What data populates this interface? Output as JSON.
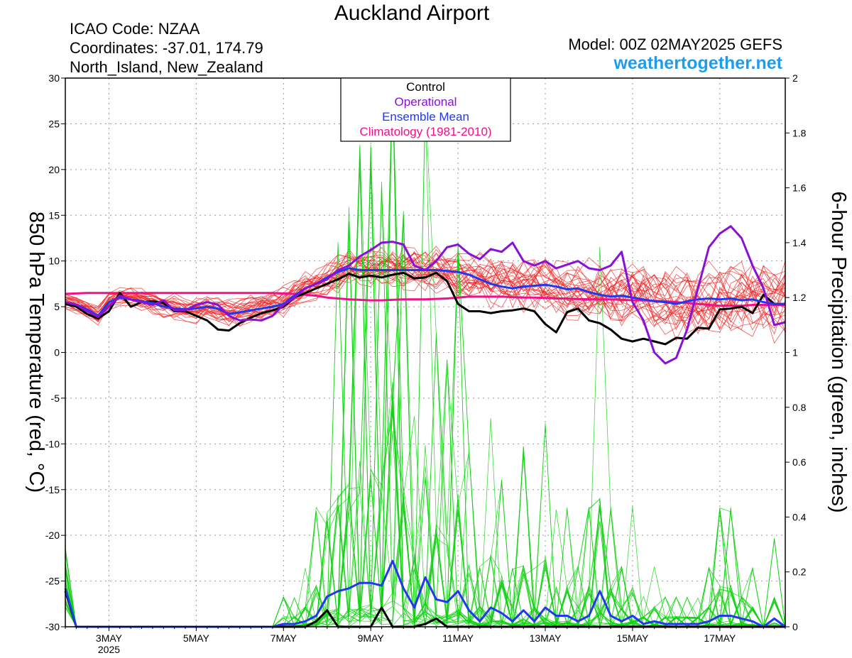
{
  "header": {
    "title": "Auckland Airport",
    "icao": "ICAO Code: NZAA",
    "coords": "Coordinates: -37.01, 174.79",
    "region": "North_Island, New_Zealand",
    "model": "Model: 00Z 02MAY2025 GEFS",
    "site": "weathertogether.net"
  },
  "colors": {
    "control": "#000000",
    "operational": "#8a10d8",
    "ensemble_mean": "#2038f0",
    "climatology": "#f0108a",
    "member_temp": "#f02020",
    "member_precip": "#10d010",
    "site": "#1e9cf0"
  },
  "chart_data": {
    "type": "line",
    "ylabel": "850 hPa Temperature (red, °C)",
    "y2label": "6-hour Precipitation (green, inches)",
    "ylim": [
      -30,
      30
    ],
    "y2lim": [
      0,
      2
    ],
    "yticks": [
      30,
      25,
      20,
      15,
      10,
      5,
      0,
      -5,
      -10,
      -15,
      -20,
      -25,
      -30
    ],
    "y2ticks": [
      2,
      1.8,
      1.6,
      1.4,
      1.2,
      1,
      0.8,
      0.6,
      0.4,
      0.2,
      0
    ],
    "x_start": "2025-05-02 00Z",
    "x_step_hours": 6,
    "x_ticks": [
      {
        "label": "3MAY",
        "sub": "2025",
        "day": 3
      },
      {
        "label": "5MAY",
        "day": 5
      },
      {
        "label": "7MAY",
        "day": 7
      },
      {
        "label": "9MAY",
        "day": 9
      },
      {
        "label": "11MAY",
        "day": 11
      },
      {
        "label": "13MAY",
        "day": 13
      },
      {
        "label": "15MAY",
        "day": 15
      },
      {
        "label": "17MAY",
        "day": 17
      }
    ],
    "legend": {
      "placement": "top-center",
      "entries": [
        "Control",
        "Operational",
        "Ensemble Mean",
        "Climatology (1981-2010)"
      ]
    },
    "grid": true,
    "series": [
      {
        "name": "Control",
        "axis": "temp",
        "values": [
          5.3,
          5.0,
          4.2,
          3.7,
          4.5,
          6.5,
          5.0,
          5.5,
          5.6,
          5.4,
          4.5,
          4.5,
          4.0,
          3.5,
          2.5,
          2.4,
          3.2,
          3.8,
          4.3,
          4.6,
          5.0,
          6.0,
          6.5,
          7.0,
          7.5,
          8.0,
          8.6,
          8.2,
          8.4,
          8.2,
          8.5,
          8.7,
          8.1,
          8.2,
          8.7,
          7.8,
          5.3,
          4.5,
          4.5,
          4.3,
          4.5,
          4.6,
          4.8,
          4.5,
          3.1,
          2.2,
          4.4,
          4.8,
          3.5,
          3.2,
          2.5,
          1.5,
          1.2,
          1.5,
          1.2,
          0.9,
          1.6,
          1.5,
          2.7,
          2.6,
          4.7,
          4.8,
          5.0,
          4.3,
          6.3,
          5.3,
          5.3
        ]
      },
      {
        "name": "Operational",
        "axis": "temp",
        "values": [
          5.5,
          5.2,
          4.5,
          3.9,
          5.0,
          6.2,
          5.8,
          5.5,
          5.2,
          5.7,
          4.6,
          4.6,
          5.2,
          5.5,
          5.2,
          4.0,
          3.5,
          3.6,
          3.5,
          4.0,
          5.2,
          6.0,
          7.0,
          7.5,
          8.0,
          9.0,
          9.5,
          10.5,
          11.2,
          12.0,
          12.1,
          11.8,
          9.5,
          9.0,
          10.0,
          11.5,
          11.8,
          10.8,
          10.2,
          11.3,
          11.0,
          12.0,
          10.0,
          9.5,
          10.0,
          9.2,
          9.6,
          10.0,
          9.2,
          9.0,
          9.5,
          11.0,
          5.5,
          3.5,
          0.0,
          -1.2,
          -0.6,
          2.5,
          7.0,
          11.5,
          13.0,
          13.8,
          12.5,
          9.5,
          7.0,
          3.0,
          3.3
        ]
      },
      {
        "name": "Ensemble Mean",
        "axis": "temp",
        "values": [
          5.5,
          5.2,
          4.7,
          4.0,
          5.5,
          6.0,
          5.8,
          5.6,
          5.4,
          5.0,
          4.8,
          4.7,
          4.8,
          5.0,
          4.8,
          4.2,
          4.4,
          4.6,
          4.8,
          5.0,
          5.3,
          6.2,
          7.0,
          7.5,
          8.2,
          8.8,
          9.2,
          9.0,
          9.0,
          9.0,
          9.0,
          9.0,
          9.0,
          9.0,
          9.0,
          8.9,
          8.8,
          8.5,
          8.0,
          7.5,
          7.2,
          7.0,
          7.2,
          7.3,
          7.4,
          7.2,
          6.9,
          7.0,
          6.6,
          6.3,
          6.1,
          6.2,
          6.0,
          5.8,
          5.6,
          5.5,
          5.3,
          5.6,
          5.8,
          5.9,
          5.8,
          5.9,
          5.7,
          5.8,
          5.5,
          5.3,
          5.3
        ]
      },
      {
        "name": "Climatology (1981-2010)",
        "axis": "temp",
        "values": [
          6.4,
          6.45,
          6.5,
          6.5,
          6.5,
          6.5,
          6.5,
          6.5,
          6.5,
          6.5,
          6.5,
          6.5,
          6.5,
          6.5,
          6.5,
          6.5,
          6.5,
          6.5,
          6.5,
          6.5,
          6.45,
          6.4,
          6.3,
          6.2,
          6.0,
          5.9,
          5.8,
          5.75,
          5.7,
          5.7,
          5.75,
          5.8,
          5.8,
          5.8,
          5.85,
          5.9,
          6.0,
          6.1,
          6.1,
          6.1,
          6.1,
          6.05,
          6.0,
          6.0,
          5.95,
          5.9,
          5.9,
          5.85,
          5.8,
          5.8,
          5.8,
          5.75,
          5.7,
          5.7,
          5.65,
          5.6,
          5.5,
          5.4,
          5.3,
          5.2,
          5.1,
          5.1,
          5.1,
          5.2,
          5.2,
          5.2,
          5.2
        ]
      },
      {
        "name": "Ensemble Mean",
        "axis": "precip",
        "values": [
          0.14,
          0.0,
          0.0,
          0.0,
          0.0,
          0.0,
          0.0,
          0.0,
          0.0,
          0.0,
          0.0,
          0.0,
          0.0,
          0.0,
          0.0,
          0.0,
          0.0,
          0.0,
          0.0,
          0.0,
          0.01,
          0.01,
          0.02,
          0.04,
          0.11,
          0.13,
          0.14,
          0.16,
          0.16,
          0.15,
          0.24,
          0.14,
          0.07,
          0.18,
          0.1,
          0.09,
          0.13,
          0.06,
          0.02,
          0.07,
          0.05,
          0.02,
          0.06,
          0.02,
          0.07,
          0.04,
          0.04,
          0.02,
          0.04,
          0.13,
          0.04,
          0.02,
          0.04,
          0.01,
          0.02,
          0.01,
          0.01,
          0.01,
          0.01,
          0.02,
          0.04,
          0.04,
          0.03,
          0.02,
          0.0,
          0.03,
          0.0
        ]
      },
      {
        "name": "Control",
        "axis": "precip",
        "values": [
          0.13,
          0.0,
          0.0,
          0.0,
          0.0,
          0.0,
          0.0,
          0.0,
          0.0,
          0.0,
          0.0,
          0.0,
          0.0,
          0.0,
          0.0,
          0.0,
          0.0,
          0.0,
          0.0,
          0.0,
          0.0,
          0.0,
          0.0,
          0.02,
          0.06,
          0.0,
          0.0,
          0.0,
          0.0,
          0.07,
          0.0,
          0.0,
          0.0,
          0.01,
          0.03,
          0.0,
          0.0,
          0.0,
          0.0,
          0.0,
          0.0,
          0.0,
          0.0,
          0.0,
          0.0,
          0.0,
          0.0,
          0.0,
          0.0,
          0.0,
          0.0,
          0.0,
          0.0,
          0.0,
          0.0,
          0.0,
          0.0,
          0.0,
          0.0,
          0.0,
          0.0,
          0.0,
          0.0,
          0.0,
          0.0,
          0.0,
          0.0
        ]
      }
    ]
  }
}
